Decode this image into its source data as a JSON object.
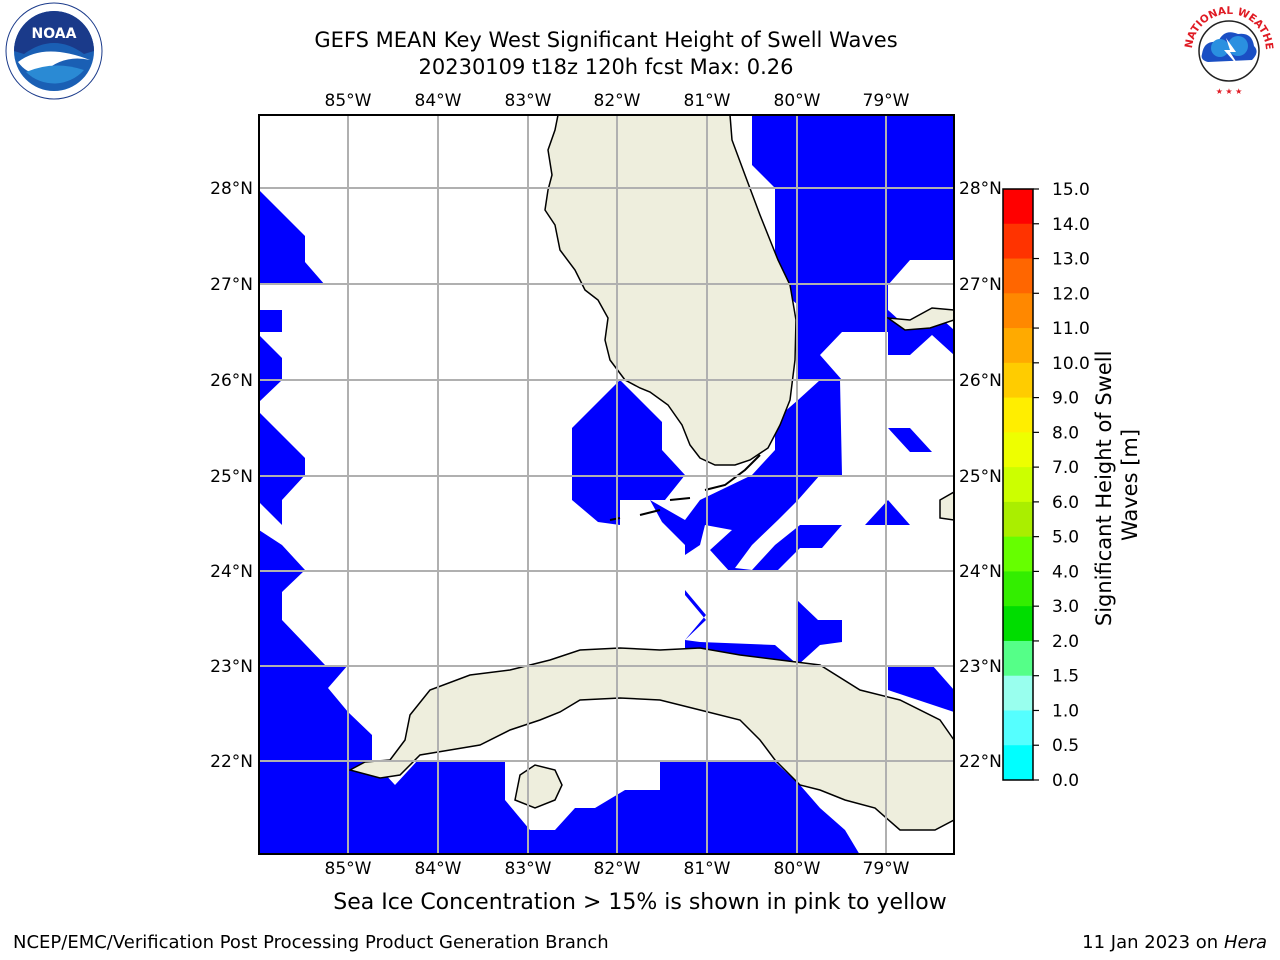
{
  "title": {
    "line1": "GEFS MEAN Key West Significant Height of Swell Waves",
    "line2": "20230109 t18z 120h fcst   Max: 0.26"
  },
  "axes": {
    "lon_labels": [
      "85°W",
      "84°W",
      "83°W",
      "82°W",
      "81°W",
      "80°W",
      "79°W"
    ],
    "lat_labels": [
      "28°N",
      "27°N",
      "26°N",
      "25°N",
      "24°N",
      "23°N",
      "22°N"
    ]
  },
  "colorbar": {
    "label": "Significant Height of Swell Waves [m]",
    "ticks": [
      "15.0",
      "14.0",
      "13.0",
      "12.0",
      "11.0",
      "10.0",
      "9.0",
      "8.0",
      "7.0",
      "6.0",
      "5.0",
      "4.0",
      "3.0",
      "2.0",
      "1.5",
      "1.0",
      "0.5",
      "0.0"
    ],
    "colors": [
      "#ff0000",
      "#ff3300",
      "#ff6600",
      "#ff8800",
      "#ffaa00",
      "#ffcc00",
      "#ffee00",
      "#eeff00",
      "#ccff00",
      "#aaee00",
      "#66ff00",
      "#33ee00",
      "#00dd00",
      "#55ff88",
      "#99ffee",
      "#55ffff",
      "#00ffff",
      "#0088ff",
      "#0000ff"
    ]
  },
  "colors": {
    "ocean_swell": "#0000ff",
    "land": "#eeeedd",
    "grid": "#b0b0b0"
  },
  "sea_ice_note": "Sea Ice Concentration > 15% is shown in pink to yellow",
  "footer": {
    "left": "NCEP/EMC/Verification Post Processing Product Generation Branch",
    "right_date": "11 Jan 2023 on ",
    "right_host": "Hera"
  },
  "logos": {
    "noaa": "NOAA",
    "nws": "NATIONAL WEATHER SERVICE"
  }
}
